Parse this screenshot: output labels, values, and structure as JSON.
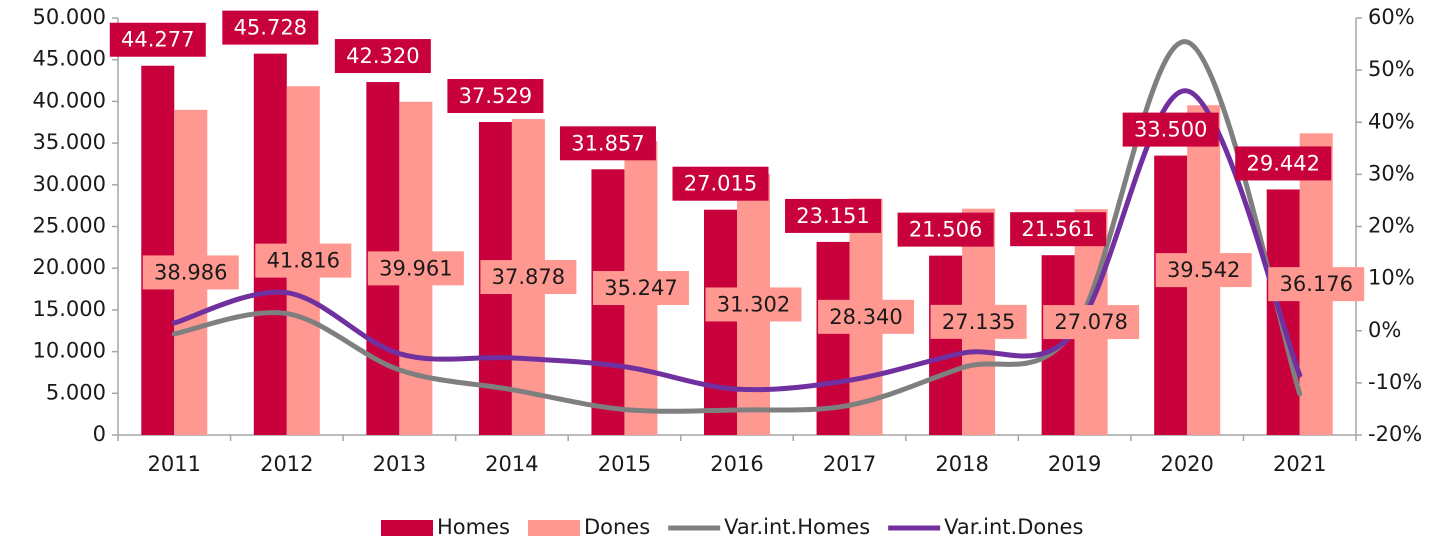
{
  "chart_data": {
    "type": "bar",
    "categories": [
      "2011",
      "2012",
      "2013",
      "2014",
      "2015",
      "2016",
      "2017",
      "2018",
      "2019",
      "2020",
      "2021"
    ],
    "series": [
      {
        "name": "Homes",
        "color": "#c8003c",
        "type": "bar",
        "values": [
          44277,
          45728,
          42320,
          37529,
          31857,
          27015,
          23151,
          21506,
          21561,
          33500,
          29442
        ],
        "value_labels": [
          "44.277",
          "45.728",
          "42.320",
          "37.529",
          "31.857",
          "27.015",
          "23.151",
          "21.506",
          "21.561",
          "33.500",
          "29.442"
        ]
      },
      {
        "name": "Dones",
        "color": "#ff9890",
        "type": "bar",
        "values": [
          38986,
          41816,
          39961,
          37878,
          35247,
          31302,
          28340,
          27135,
          27078,
          39542,
          36176
        ],
        "value_labels": [
          "38.986",
          "41.816",
          "39.961",
          "37.878",
          "35.247",
          "31.302",
          "28.340",
          "27.135",
          "27.078",
          "39.542",
          "36.176"
        ]
      },
      {
        "name": "Var.int.Homes",
        "color": "#7f7f7f",
        "type": "line",
        "axis": "y2",
        "values": [
          -0.6,
          3.3,
          -7.5,
          -11.3,
          -15.1,
          -15.2,
          -14.3,
          -7.1,
          0.3,
          55.4,
          -12.1
        ]
      },
      {
        "name": "Var.int.Dones",
        "color": "#7030a0",
        "type": "line",
        "axis": "y2",
        "values": [
          1.5,
          7.3,
          -4.4,
          -5.2,
          -6.9,
          -11.2,
          -9.5,
          -4.3,
          -0.2,
          46.0,
          -8.5
        ]
      }
    ],
    "ylim": [
      0,
      50000
    ],
    "yticks": [
      0,
      {
        "value": 5000,
        "label": "5.000"
      },
      {
        "value": 10000,
        "label": "10.000"
      },
      {
        "value": 15000,
        "label": "15.000"
      },
      {
        "value": 20000,
        "label": "20.000"
      },
      {
        "value": 25000,
        "label": "25.000"
      },
      {
        "value": 30000,
        "label": "30.000"
      },
      {
        "value": 35000,
        "label": "35.000"
      },
      {
        "value": 40000,
        "label": "40.000"
      },
      {
        "value": 45000,
        "label": "45.000"
      },
      {
        "value": 50000,
        "label": "50.000"
      }
    ],
    "y2lim": [
      -20,
      60
    ],
    "y2ticks": [
      {
        "value": -20,
        "label": "-20%"
      },
      {
        "value": -10,
        "label": "-10%"
      },
      {
        "value": 0,
        "label": "0%"
      },
      {
        "value": 10,
        "label": "10%"
      },
      {
        "value": 20,
        "label": "20%"
      },
      {
        "value": 30,
        "label": "30%"
      },
      {
        "value": 40,
        "label": "40%"
      },
      {
        "value": 50,
        "label": "50%"
      },
      {
        "value": 60,
        "label": "60%"
      }
    ],
    "legend": "bottom"
  }
}
